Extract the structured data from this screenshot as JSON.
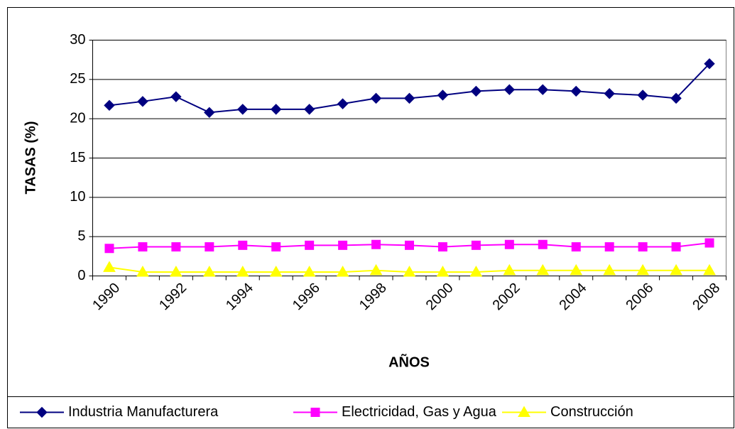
{
  "chart_data": {
    "type": "line",
    "y_label": "TASAS (%)",
    "x_label": "AÑOS",
    "categories": [
      "1990",
      null,
      "1992",
      null,
      "1994",
      null,
      "1996",
      null,
      "1998",
      null,
      "2000",
      null,
      "2002",
      null,
      "2004",
      null,
      "2006",
      null,
      "2008"
    ],
    "series": [
      {
        "name": "Industria Manufacturera",
        "color": "#000080",
        "marker": "diamond",
        "values": [
          21.7,
          22.2,
          22.8,
          20.8,
          21.2,
          21.2,
          21.2,
          21.9,
          22.6,
          22.6,
          23.0,
          23.5,
          23.7,
          23.7,
          23.5,
          23.2,
          23.0,
          22.6,
          27.0
        ]
      },
      {
        "name": "Electricidad, Gas y Agua",
        "color": "#FF00FF",
        "marker": "square",
        "values": [
          3.5,
          3.7,
          3.7,
          3.7,
          3.9,
          3.7,
          3.9,
          3.9,
          4.0,
          3.9,
          3.7,
          3.9,
          4.0,
          4.0,
          3.7,
          3.7,
          3.7,
          3.7,
          4.2
        ]
      },
      {
        "name": "Construcción",
        "color": "#FFFF00",
        "marker": "triangle",
        "values": [
          1.1,
          0.5,
          0.5,
          0.5,
          0.5,
          0.5,
          0.5,
          0.5,
          0.7,
          0.5,
          0.5,
          0.5,
          0.7,
          0.7,
          0.7,
          0.7,
          0.7,
          0.7,
          0.7
        ]
      }
    ],
    "ylim": [
      0,
      30
    ],
    "yticks": [
      0,
      5,
      10,
      15,
      20,
      25,
      30
    ],
    "grid": true,
    "legend": "bottom"
  }
}
